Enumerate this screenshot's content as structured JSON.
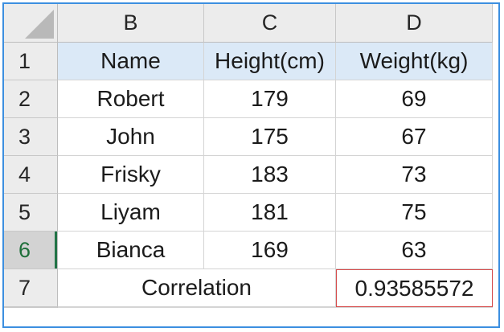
{
  "sheet": {
    "columns": [
      "B",
      "C",
      "D"
    ],
    "rows": [
      "1",
      "2",
      "3",
      "4",
      "5",
      "6",
      "7"
    ],
    "active_row": "6",
    "header": [
      "Name",
      "Height(cm)",
      "Weight(kg)"
    ],
    "data": [
      [
        "Robert",
        "179",
        "69"
      ],
      [
        "John",
        "175",
        "67"
      ],
      [
        "Frisky",
        "183",
        "73"
      ],
      [
        "Liyam",
        "181",
        "75"
      ],
      [
        "Bianca",
        "169",
        "63"
      ]
    ],
    "correlation_label": "Correlation",
    "correlation_value": "0.93585572",
    "colors": {
      "header_fill": "#dbe9f7",
      "frame_border": "#3c8fe0",
      "highlight_border": "#d64a4a",
      "active_row_indicator": "#217346"
    }
  }
}
